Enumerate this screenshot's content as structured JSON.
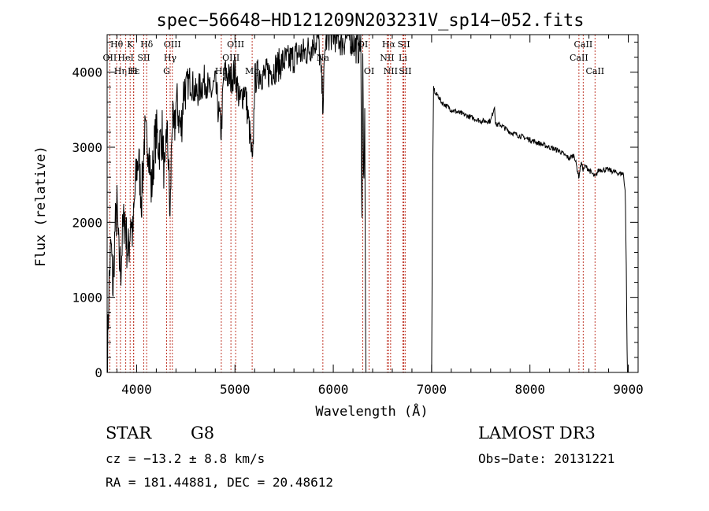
{
  "chart_data": {
    "type": "line",
    "title": "spec−56648−HD121209N203231V_sp14−052.fits",
    "xlabel": "Wavelength (Å)",
    "ylabel": "Flux (relative)",
    "xlim": [
      3700,
      9100
    ],
    "ylim": [
      0,
      4500
    ],
    "x_ticks": [
      4000,
      5000,
      6000,
      7000,
      8000,
      9000
    ],
    "y_ticks": [
      0,
      1000,
      2000,
      3000,
      4000
    ],
    "grid": false,
    "series": [
      {
        "name": "flux",
        "x": [
          3700,
          3720,
          3740,
          3760,
          3780,
          3800,
          3820,
          3840,
          3860,
          3880,
          3900,
          3920,
          3940,
          3960,
          3980,
          4000,
          4020,
          4050,
          4080,
          4100,
          4120,
          4150,
          4180,
          4200,
          4230,
          4260,
          4290,
          4300,
          4320,
          4340,
          4360,
          4380,
          4400,
          4420,
          4450,
          4480,
          4500,
          4550,
          4600,
          4650,
          4700,
          4750,
          4800,
          4830,
          4861,
          4880,
          4900,
          4950,
          5000,
          5050,
          5100,
          5150,
          5180,
          5200,
          5250,
          5300,
          5350,
          5400,
          5450,
          5500,
          5550,
          5600,
          5650,
          5700,
          5750,
          5800,
          5850,
          5895,
          5920,
          5950,
          6000,
          6050,
          6100,
          6150,
          6200,
          6250,
          6280,
          6290,
          6300,
          6310,
          6320,
          6330,
          7000,
          7010,
          7020,
          7040,
          7060,
          7100,
          7150,
          7200,
          7300,
          7400,
          7500,
          7600,
          7640,
          7650,
          7700,
          7800,
          7900,
          8000,
          8100,
          8200,
          8300,
          8400,
          8450,
          8498,
          8520,
          8542,
          8560,
          8600,
          8662,
          8700,
          8800,
          8900,
          8950,
          8970,
          8980,
          8990,
          9000
        ],
        "values": [
          0,
          1200,
          1700,
          1100,
          1900,
          2200,
          1500,
          1400,
          1900,
          2100,
          1700,
          1600,
          2100,
          1800,
          2300,
          2700,
          2850,
          2300,
          3150,
          3050,
          3100,
          2400,
          3000,
          3200,
          3000,
          3200,
          2400,
          3300,
          2950,
          2000,
          3400,
          3100,
          3600,
          3500,
          3200,
          3800,
          3800,
          3900,
          3700,
          3800,
          3900,
          3700,
          3850,
          3500,
          3200,
          3800,
          4000,
          3900,
          4000,
          3600,
          3800,
          3200,
          2700,
          3900,
          4000,
          3950,
          4000,
          4050,
          4100,
          4150,
          4150,
          4200,
          4250,
          4250,
          4300,
          4400,
          4450,
          3600,
          4400,
          4500,
          4500,
          4450,
          4400,
          4500,
          4400,
          4300,
          4400,
          1800,
          4200,
          2500,
          3400,
          0,
          0,
          2500,
          3800,
          3700,
          3700,
          3600,
          3550,
          3500,
          3450,
          3400,
          3350,
          3350,
          3550,
          3300,
          3300,
          3200,
          3150,
          3100,
          3050,
          3000,
          2950,
          2850,
          2900,
          2600,
          2800,
          2700,
          2750,
          2700,
          2600,
          2700,
          2700,
          2650,
          2650,
          2400,
          1400,
          0,
          0
        ]
      }
    ],
    "lines": [
      {
        "label": "Hθ",
        "x": 3797,
        "row": 1
      },
      {
        "label": "OII",
        "x": 3727,
        "row": 2
      },
      {
        "label": "Hη",
        "x": 3835,
        "row": 3
      },
      {
        "label": "K",
        "x": 3934,
        "row": 1
      },
      {
        "label": "HeI",
        "x": 3889,
        "row": 2
      },
      {
        "label": "Hε",
        "x": 3970,
        "row": 3
      },
      {
        "label": "H",
        "x": 3969,
        "row": 3
      },
      {
        "label": "Hδ",
        "x": 4102,
        "row": 1
      },
      {
        "label": "SII",
        "x": 4072,
        "row": 2
      },
      {
        "label": "OIII",
        "x": 4363,
        "row": 1
      },
      {
        "label": "Hγ",
        "x": 4341,
        "row": 2
      },
      {
        "label": "G",
        "x": 4305,
        "row": 3
      },
      {
        "label": "OIII",
        "x": 5007,
        "row": 1
      },
      {
        "label": "OIII",
        "x": 4959,
        "row": 2
      },
      {
        "label": "Hβ",
        "x": 4861,
        "row": 3
      },
      {
        "label": "Mg",
        "x": 5175,
        "row": 3
      },
      {
        "label": "Na",
        "x": 5894,
        "row": 2
      },
      {
        "label": "OI",
        "x": 6300,
        "row": 1
      },
      {
        "label": "OI",
        "x": 6364,
        "row": 3
      },
      {
        "label": "Hα",
        "x": 6563,
        "row": 1
      },
      {
        "label": "SII",
        "x": 6717,
        "row": 1
      },
      {
        "label": "NII",
        "x": 6548,
        "row": 2
      },
      {
        "label": "Li",
        "x": 6708,
        "row": 2
      },
      {
        "label": "NII",
        "x": 6583,
        "row": 3
      },
      {
        "label": "SII",
        "x": 6731,
        "row": 3
      },
      {
        "label": "CaII",
        "x": 8542,
        "row": 1
      },
      {
        "label": "CaII",
        "x": 8498,
        "row": 2
      },
      {
        "label": "CaII",
        "x": 8662,
        "row": 3
      }
    ]
  },
  "info": {
    "class": "STAR",
    "subclass": "G8",
    "cz": "cz = −13.2 ± 8.8 km/s",
    "radec": "RA = 181.44881, DEC =  20.48612",
    "survey": "LAMOST DR3",
    "obsdate": "Obs−Date: 20131221"
  }
}
